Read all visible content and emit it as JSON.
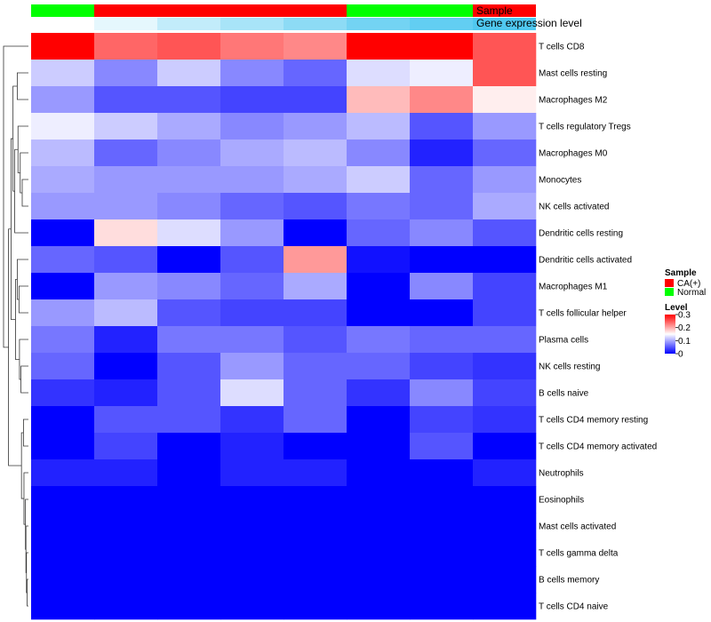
{
  "chart_data": {
    "type": "heatmap",
    "annotation_labels": {
      "sample": "Sample",
      "gene": "Gene expression level"
    },
    "sample_annotation": [
      "Normal",
      "CA(+)",
      "CA(+)",
      "CA(+)",
      "CA(+)",
      "Normal",
      "Normal",
      "CA(+)"
    ],
    "gene_expression_annotation": [
      0.0,
      0.15,
      0.35,
      0.5,
      0.65,
      0.8,
      0.9,
      1.0
    ],
    "rows": [
      "T cells CD8",
      "Mast cells resting",
      "Macrophages M2",
      "T cells regulatory  Tregs",
      "Macrophages M0",
      "Monocytes",
      "NK cells activated",
      "Dendritic cells resting",
      "Dendritic cells activated",
      "Macrophages M1",
      "T cells follicular helper",
      "Plasma cells",
      "NK cells resting",
      "B cells naive",
      "T cells CD4 memory resting",
      "T cells CD4 memory activated",
      "Neutrophils",
      "Eosinophils",
      "Mast cells activated",
      "T cells gamma delta",
      "B cells memory",
      "T cells CD4 naive"
    ],
    "values": [
      [
        0.3,
        0.24,
        0.25,
        0.23,
        0.22,
        0.3,
        0.3,
        0.25
      ],
      [
        0.12,
        0.08,
        0.12,
        0.08,
        0.06,
        0.13,
        0.14,
        0.25
      ],
      [
        0.09,
        0.05,
        0.05,
        0.04,
        0.04,
        0.19,
        0.22,
        0.16
      ],
      [
        0.14,
        0.12,
        0.1,
        0.08,
        0.09,
        0.11,
        0.05,
        0.09
      ],
      [
        0.11,
        0.06,
        0.08,
        0.1,
        0.11,
        0.08,
        0.02,
        0.06
      ],
      [
        0.1,
        0.09,
        0.09,
        0.09,
        0.1,
        0.12,
        0.06,
        0.09
      ],
      [
        0.09,
        0.09,
        0.08,
        0.06,
        0.05,
        0.07,
        0.06,
        0.1
      ],
      [
        0.0,
        0.17,
        0.13,
        0.09,
        0.0,
        0.06,
        0.08,
        0.05
      ],
      [
        0.06,
        0.05,
        0.0,
        0.05,
        0.21,
        0.01,
        0.0,
        0.0
      ],
      [
        0.0,
        0.09,
        0.08,
        0.06,
        0.1,
        0.0,
        0.08,
        0.04
      ],
      [
        0.09,
        0.11,
        0.05,
        0.04,
        0.04,
        0.0,
        0.0,
        0.04
      ],
      [
        0.07,
        0.02,
        0.07,
        0.07,
        0.05,
        0.07,
        0.06,
        0.06
      ],
      [
        0.06,
        0.0,
        0.05,
        0.09,
        0.06,
        0.06,
        0.04,
        0.03
      ],
      [
        0.03,
        0.02,
        0.05,
        0.13,
        0.06,
        0.03,
        0.08,
        0.04
      ],
      [
        0.0,
        0.05,
        0.05,
        0.03,
        0.06,
        0.0,
        0.04,
        0.03
      ],
      [
        0.0,
        0.04,
        0.0,
        0.02,
        0.0,
        0.0,
        0.05,
        0.0
      ],
      [
        0.02,
        0.02,
        0.0,
        0.02,
        0.02,
        0.0,
        0.0,
        0.02
      ],
      [
        0.0,
        0.0,
        0.0,
        0.0,
        0.0,
        0.0,
        0.0,
        0.0
      ],
      [
        0.0,
        0.0,
        0.0,
        0.0,
        0.0,
        0.0,
        0.0,
        0.0
      ],
      [
        0.0,
        0.0,
        0.0,
        0.0,
        0.0,
        0.0,
        0.0,
        0.0
      ],
      [
        0.0,
        0.0,
        0.0,
        0.0,
        0.0,
        0.0,
        0.0,
        0.0
      ],
      [
        0.0,
        0.0,
        0.0,
        0.0,
        0.0,
        0.0,
        0.0,
        0.0
      ]
    ],
    "color_scale": {
      "low": "#0000ff",
      "mid": "#ffffff",
      "high": "#ff0000",
      "min": 0,
      "max": 0.3
    },
    "legend": {
      "sample_title": "Sample",
      "sample_entries": [
        {
          "label": "CA(+)",
          "color": "#ff0000"
        },
        {
          "label": "Normal",
          "color": "#00ff00"
        }
      ],
      "level_title": "Level",
      "level_ticks": [
        {
          "value": 0.3,
          "label": "0.3"
        },
        {
          "value": 0.2,
          "label": "0.2"
        },
        {
          "value": 0.1,
          "label": "0.1"
        },
        {
          "value": 0,
          "label": "0"
        }
      ]
    },
    "dendrogram": "row clustering (left side)"
  }
}
